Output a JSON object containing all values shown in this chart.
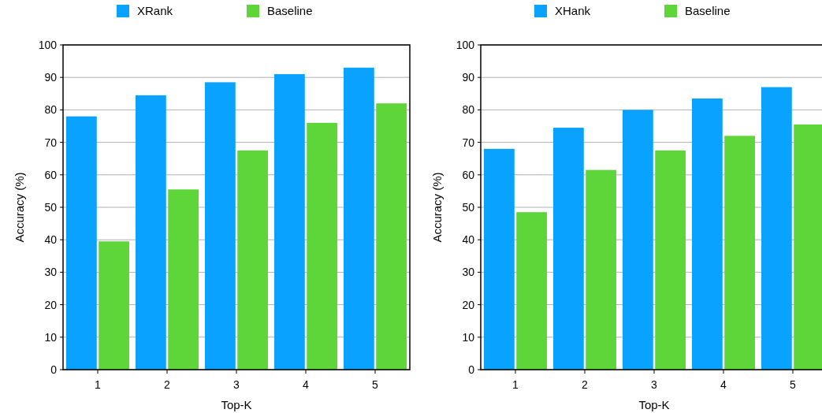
{
  "chart_data": [
    {
      "type": "bar",
      "categories": [
        "1",
        "2",
        "3",
        "4",
        "5"
      ],
      "xlabel": "Top-K",
      "ylabel": "Accuracy (%)",
      "ylim": [
        0,
        100
      ],
      "yticks": [
        0,
        10,
        20,
        30,
        40,
        50,
        60,
        70,
        80,
        90,
        100
      ],
      "grid": "y",
      "legend": "top",
      "series": [
        {
          "name": "XRank",
          "color": "#0aa2ff",
          "values": [
            78,
            84.5,
            88.5,
            91,
            93
          ]
        },
        {
          "name": "Baseline",
          "color": "#5ed63a",
          "values": [
            39.5,
            55.5,
            67.5,
            76,
            82
          ]
        }
      ]
    },
    {
      "type": "bar",
      "categories": [
        "1",
        "2",
        "3",
        "4",
        "5"
      ],
      "xlabel": "Top-K",
      "ylabel": "Accuracy (%)",
      "ylim": [
        0,
        100
      ],
      "yticks": [
        0,
        10,
        20,
        30,
        40,
        50,
        60,
        70,
        80,
        90,
        100
      ],
      "grid": "y",
      "legend": "top",
      "series": [
        {
          "name": "XHank",
          "color": "#0aa2ff",
          "values": [
            68,
            74.5,
            80,
            83.5,
            87
          ]
        },
        {
          "name": "Baseline",
          "color": "#5ed63a",
          "values": [
            48.5,
            61.5,
            67.5,
            72,
            75.5
          ]
        }
      ]
    }
  ]
}
